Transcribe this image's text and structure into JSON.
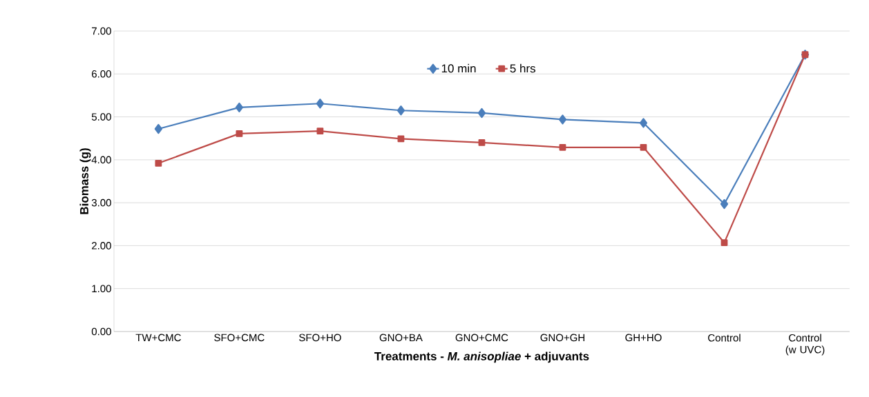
{
  "chart_data": {
    "type": "line",
    "xlabel": "Treatments - *M. anisopliae* + adjuvants",
    "ylabel": "Biomass (g)",
    "categories": [
      "TW+CMC",
      "SFO+CMC",
      "SFO+HO",
      "GNO+BA",
      "GNO+CMC",
      "GNO+GH",
      "GH+HO",
      "Control",
      "Control (w UVC)"
    ],
    "series": [
      {
        "name": "10 min",
        "color": "#4a7ebb",
        "marker": "diamond",
        "values": [
          4.72,
          5.22,
          5.31,
          5.15,
          5.09,
          4.94,
          4.86,
          2.97,
          6.45
        ]
      },
      {
        "name": "5 hrs",
        "color": "#be4b48",
        "marker": "square",
        "values": [
          3.92,
          4.61,
          4.67,
          4.49,
          4.4,
          4.29,
          4.29,
          2.07,
          6.45
        ]
      }
    ],
    "ylim": [
      0,
      7
    ],
    "yticks": [
      {
        "value": 0,
        "label": "0.00"
      },
      {
        "value": 1,
        "label": "1.00"
      },
      {
        "value": 2,
        "label": "2.00"
      },
      {
        "value": 3,
        "label": "3.00"
      },
      {
        "value": 4,
        "label": "4.00"
      },
      {
        "value": 5,
        "label": "5.00"
      },
      {
        "value": 6,
        "label": "6.00"
      },
      {
        "value": 7,
        "label": "7.00"
      }
    ],
    "grid": "y",
    "legend": "top",
    "line_style": "solid"
  }
}
